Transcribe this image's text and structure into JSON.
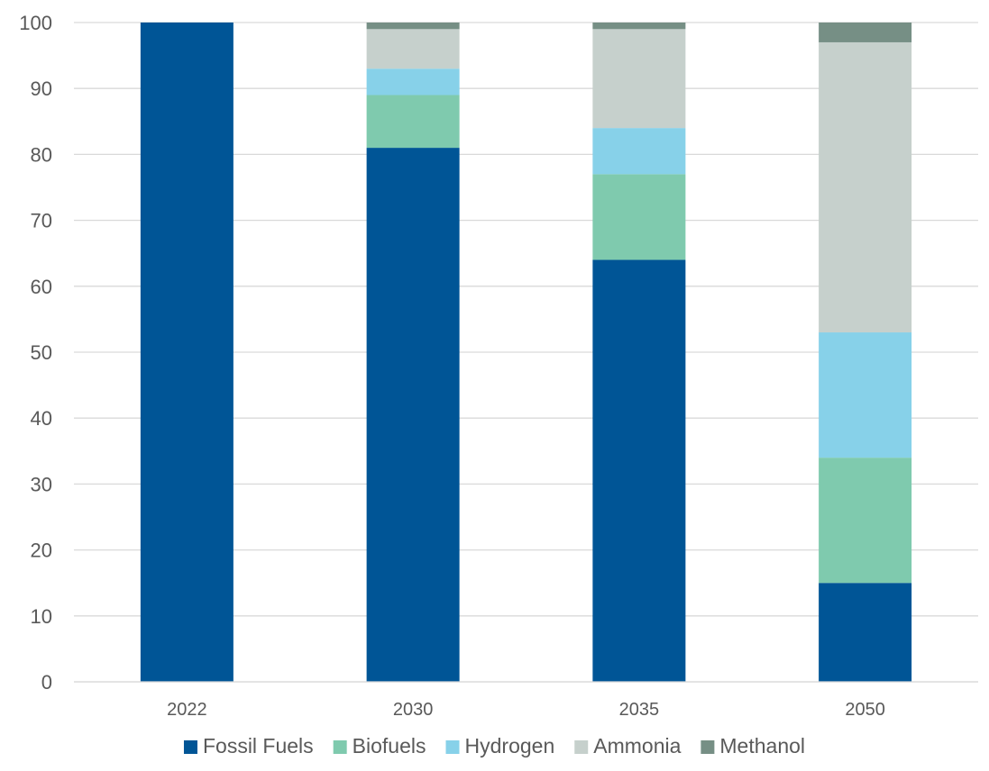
{
  "chart_data": {
    "type": "bar",
    "stacked": true,
    "categories": [
      "2022",
      "2030",
      "2035",
      "2050"
    ],
    "series": [
      {
        "name": "Fossil Fuels",
        "color": "#005596",
        "values": [
          100,
          81,
          64,
          15
        ]
      },
      {
        "name": "Biofuels",
        "color": "#7fcaae",
        "values": [
          0,
          8,
          13,
          19
        ]
      },
      {
        "name": "Hydrogen",
        "color": "#87d1e9",
        "values": [
          0,
          4,
          7,
          19
        ]
      },
      {
        "name": "Ammonia",
        "color": "#c6d0cc",
        "values": [
          0,
          6,
          15,
          44
        ]
      },
      {
        "name": "Methanol",
        "color": "#768f85",
        "values": [
          0,
          1,
          1,
          3
        ]
      }
    ],
    "title": "",
    "xlabel": "",
    "ylabel": "",
    "ylim": [
      0,
      100
    ],
    "yticks": [
      "0",
      "10",
      "20",
      "30",
      "40",
      "50",
      "60",
      "70",
      "80",
      "90",
      "100"
    ],
    "grid": true,
    "legend_position": "bottom"
  }
}
